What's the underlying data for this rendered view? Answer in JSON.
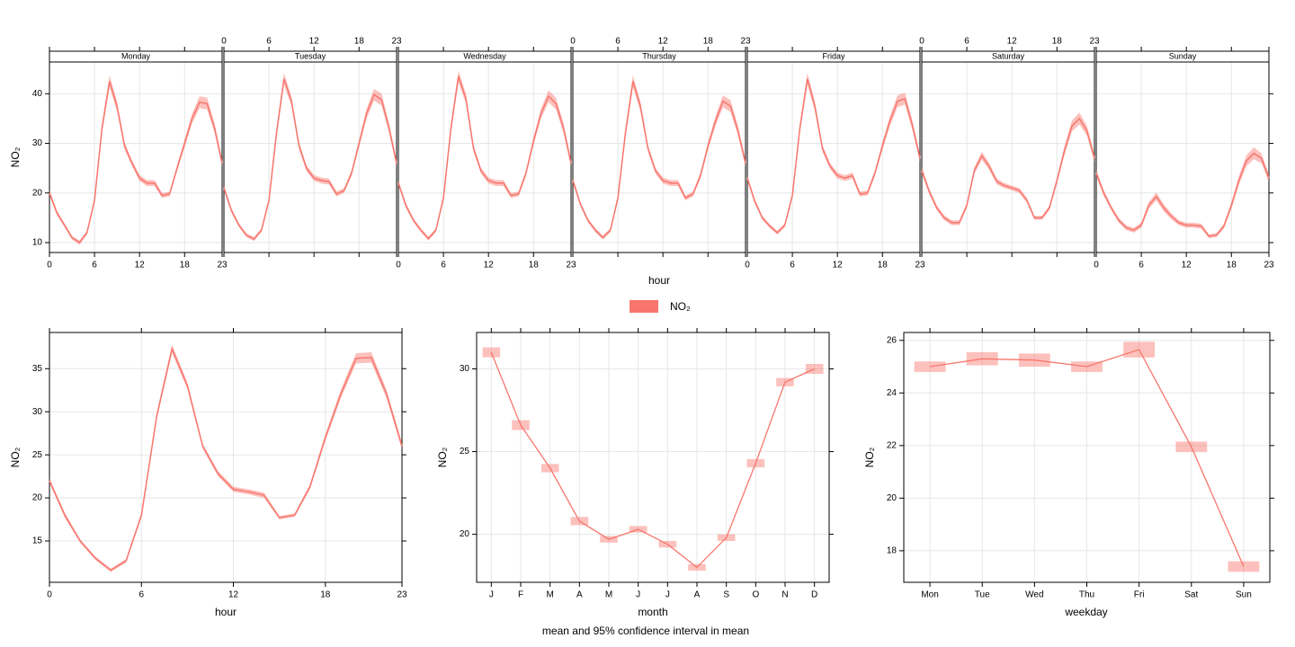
{
  "chart_data": [
    {
      "type": "line",
      "facet": true,
      "x_label": "hour",
      "y_label": "NO₂",
      "x": [
        0,
        1,
        2,
        3,
        4,
        5,
        6,
        7,
        8,
        9,
        10,
        11,
        12,
        13,
        14,
        15,
        16,
        17,
        18,
        19,
        20,
        21,
        22,
        23
      ],
      "xlim": [
        0,
        23
      ],
      "xticks": [
        0,
        6,
        12,
        18,
        23
      ],
      "ylim": [
        8,
        46.4
      ],
      "yticks": [
        10,
        20,
        30,
        40
      ],
      "grid": true,
      "series": [
        {
          "name": "Monday",
          "color": "#f8766d",
          "values": [
            20,
            16,
            13.5,
            11,
            10,
            12,
            18.5,
            33,
            42.5,
            37.5,
            29.5,
            26,
            23,
            22,
            22,
            19.5,
            19.8,
            25,
            30,
            35,
            38.3,
            38,
            33,
            26
          ],
          "ci": [
            0.6,
            0.5,
            0.4,
            0.4,
            0.4,
            0.4,
            0.6,
            1.0,
            1.2,
            1.0,
            0.7,
            0.6,
            0.6,
            0.6,
            0.6,
            0.5,
            0.5,
            0.6,
            0.8,
            1.0,
            1.2,
            1.2,
            1.0,
            0.8
          ]
        },
        {
          "name": "Tuesday",
          "color": "#f8766d",
          "values": [
            21,
            16.5,
            13.5,
            11.5,
            10.7,
            12.5,
            18.5,
            32,
            43,
            38.5,
            29.5,
            25,
            23,
            22.5,
            22.3,
            19.8,
            20.5,
            24,
            30,
            36,
            39.8,
            38.8,
            33,
            26
          ],
          "ci": [
            0.6,
            0.5,
            0.4,
            0.4,
            0.4,
            0.4,
            0.6,
            1.0,
            1.2,
            1.0,
            0.7,
            0.6,
            0.6,
            0.6,
            0.6,
            0.5,
            0.5,
            0.6,
            0.8,
            1.0,
            1.2,
            1.2,
            1.0,
            0.8
          ]
        },
        {
          "name": "Wednesday",
          "color": "#f8766d",
          "values": [
            22,
            17.5,
            14.5,
            12.5,
            10.8,
            12.5,
            19,
            33,
            43.5,
            39,
            29,
            24.5,
            22.5,
            22,
            22,
            19.5,
            19.8,
            24,
            30.5,
            36,
            39.5,
            38,
            33,
            26
          ],
          "ci": [
            0.6,
            0.5,
            0.4,
            0.4,
            0.4,
            0.4,
            0.6,
            1.0,
            1.2,
            1.0,
            0.7,
            0.6,
            0.6,
            0.6,
            0.6,
            0.5,
            0.5,
            0.6,
            0.8,
            1.0,
            1.2,
            1.2,
            1.0,
            0.8
          ]
        },
        {
          "name": "Thursday",
          "color": "#f8766d",
          "values": [
            22.5,
            17.8,
            14.5,
            12.5,
            11,
            12.5,
            19,
            32,
            42.5,
            37.5,
            29,
            24.5,
            22.5,
            22,
            22,
            19,
            19.8,
            23.5,
            29.5,
            34.5,
            38.5,
            37.5,
            32.5,
            26
          ],
          "ci": [
            0.6,
            0.5,
            0.4,
            0.4,
            0.4,
            0.4,
            0.6,
            1.0,
            1.2,
            1.0,
            0.7,
            0.6,
            0.6,
            0.6,
            0.6,
            0.5,
            0.5,
            0.6,
            0.8,
            1.0,
            1.2,
            1.2,
            1.0,
            0.8
          ]
        },
        {
          "name": "Friday",
          "color": "#f8766d",
          "values": [
            23,
            18.3,
            15,
            13.3,
            12,
            13.5,
            19.5,
            33,
            43,
            37.5,
            29,
            25.5,
            23.5,
            23,
            23.5,
            19.8,
            20,
            24,
            29.5,
            34.5,
            38.5,
            39,
            33.5,
            27
          ],
          "ci": [
            0.6,
            0.5,
            0.4,
            0.4,
            0.4,
            0.4,
            0.6,
            1.0,
            1.2,
            1.0,
            0.7,
            0.6,
            0.6,
            0.6,
            0.6,
            0.5,
            0.5,
            0.6,
            0.8,
            1.0,
            1.2,
            1.2,
            1.0,
            0.8
          ]
        },
        {
          "name": "Saturday",
          "color": "#f8766d",
          "values": [
            24.5,
            20.3,
            17,
            15,
            14,
            14,
            17.5,
            24.5,
            27.5,
            25.3,
            22.3,
            21.5,
            21,
            20.5,
            18.5,
            15,
            15,
            17,
            22.5,
            28.5,
            33.5,
            35,
            32.5,
            27
          ],
          "ci": [
            0.7,
            0.6,
            0.5,
            0.5,
            0.5,
            0.5,
            0.5,
            0.7,
            0.8,
            0.7,
            0.6,
            0.5,
            0.5,
            0.5,
            0.5,
            0.4,
            0.4,
            0.5,
            0.7,
            0.9,
            1.1,
            1.2,
            1.0,
            0.8
          ]
        },
        {
          "name": "Sunday",
          "color": "#f8766d",
          "values": [
            24,
            20,
            17,
            14.5,
            13,
            12.5,
            13.5,
            17.5,
            19.3,
            17,
            15.3,
            14,
            13.5,
            13.5,
            13.3,
            11.3,
            11.5,
            13.3,
            17.5,
            22.5,
            26.5,
            28,
            27,
            23
          ],
          "ci": [
            0.7,
            0.6,
            0.5,
            0.5,
            0.5,
            0.5,
            0.5,
            0.7,
            0.8,
            0.7,
            0.6,
            0.5,
            0.5,
            0.5,
            0.5,
            0.4,
            0.4,
            0.5,
            0.7,
            0.9,
            1.1,
            1.2,
            1.0,
            0.8
          ]
        }
      ]
    },
    {
      "type": "line",
      "x_label": "hour",
      "y_label": "NO₂",
      "x": [
        0,
        1,
        2,
        3,
        4,
        5,
        6,
        7,
        8,
        9,
        10,
        11,
        12,
        13,
        14,
        15,
        16,
        17,
        18,
        19,
        20,
        21,
        22,
        23
      ],
      "xlim": [
        0,
        23
      ],
      "xticks": [
        0,
        6,
        12,
        18,
        23
      ],
      "ylim": [
        10.2,
        39.2
      ],
      "yticks": [
        15,
        20,
        25,
        30,
        35
      ],
      "grid": true,
      "series": [
        {
          "color": "#f8766d",
          "values": [
            22,
            18,
            15,
            13,
            11.6,
            12.7,
            18,
            29.5,
            37.3,
            33,
            26,
            22.8,
            21,
            20.7,
            20.3,
            17.7,
            18,
            21.3,
            27,
            32,
            36.2,
            36.3,
            32,
            26
          ],
          "ci": [
            0.3,
            0.3,
            0.2,
            0.2,
            0.2,
            0.2,
            0.3,
            0.4,
            0.5,
            0.4,
            0.3,
            0.3,
            0.3,
            0.3,
            0.3,
            0.2,
            0.2,
            0.3,
            0.4,
            0.5,
            0.6,
            0.6,
            0.5,
            0.4
          ]
        }
      ]
    },
    {
      "type": "interval",
      "x_label": "month",
      "y_label": "NO₂",
      "categories": [
        "J",
        "F",
        "M",
        "A",
        "M",
        "J",
        "J",
        "A",
        "S",
        "O",
        "N",
        "D"
      ],
      "ylim": [
        17.1,
        32.2
      ],
      "yticks": [
        20,
        25,
        30
      ],
      "grid": true,
      "series": [
        {
          "color": "#f8766d",
          "values": [
            31,
            26.6,
            24,
            20.8,
            19.7,
            20.3,
            19.4,
            18,
            19.8,
            24.3,
            29.2,
            30
          ],
          "ci": [
            0.3,
            0.3,
            0.25,
            0.25,
            0.2,
            0.2,
            0.2,
            0.2,
            0.2,
            0.25,
            0.25,
            0.3
          ]
        }
      ]
    },
    {
      "type": "interval",
      "x_label": "weekday",
      "y_label": "NO₂",
      "categories": [
        "Mon",
        "Tue",
        "Wed",
        "Thu",
        "Fri",
        "Sat",
        "Sun"
      ],
      "ylim": [
        16.8,
        26.3
      ],
      "yticks": [
        18,
        20,
        22,
        24,
        26
      ],
      "grid": true,
      "series": [
        {
          "color": "#f8766d",
          "values": [
            25,
            25.3,
            25.25,
            25,
            25.65,
            21.95,
            17.4
          ],
          "ci": [
            0.2,
            0.25,
            0.25,
            0.2,
            0.3,
            0.2,
            0.2
          ]
        }
      ]
    }
  ],
  "legend": {
    "label": "NO₂",
    "color": "#f8766d"
  },
  "caption": "mean and 95% confidence interval in mean"
}
